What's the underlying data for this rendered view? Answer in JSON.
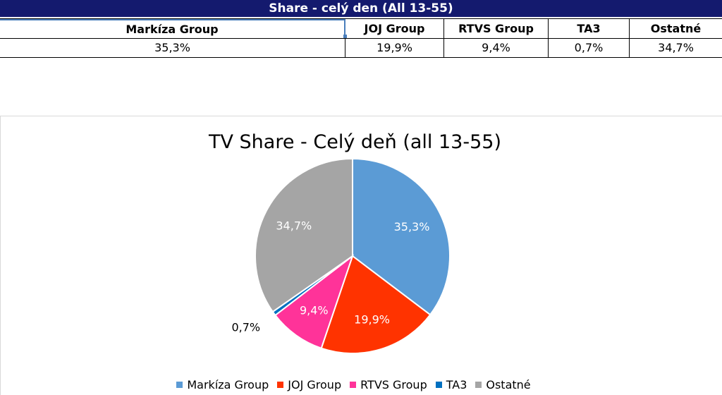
{
  "table": {
    "title": "Share - celý den (All 13-55)",
    "headers": [
      "Markíza Group",
      "JOJ Group",
      "RTVS Group",
      "TA3",
      "Ostatné"
    ],
    "values": [
      "35,3%",
      "19,9%",
      "9,4%",
      "0,7%",
      "34,7%"
    ]
  },
  "chart_data": {
    "type": "pie",
    "title": "TV Share - Celý deň (all 13-55)",
    "categories": [
      "Markíza Group",
      "JOJ Group",
      "RTVS Group",
      "TA3",
      "Ostatné"
    ],
    "values": [
      35.3,
      19.9,
      9.4,
      0.7,
      34.7
    ],
    "labels": [
      "35,3%",
      "19,9%",
      "9,4%",
      "0,7%",
      "34,7%"
    ],
    "colors": [
      "#5b9bd5",
      "#ff3300",
      "#ff3399",
      "#0070c0",
      "#a5a5a5"
    ],
    "legend_position": "bottom",
    "start_angle": "12 o'clock, clockwise"
  }
}
